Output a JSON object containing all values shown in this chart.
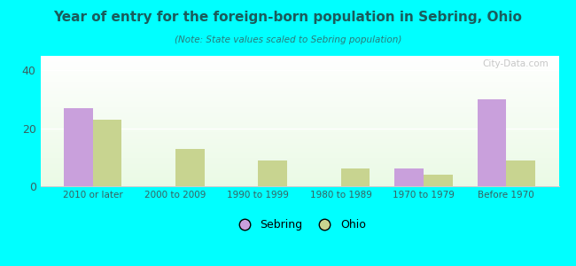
{
  "title": "Year of entry for the foreign-born population in Sebring, Ohio",
  "subtitle": "(Note: State values scaled to Sebring population)",
  "categories": [
    "2010 or later",
    "2000 to 2009",
    "1990 to 1999",
    "1980 to 1989",
    "1970 to 1979",
    "Before 1970"
  ],
  "sebring_values": [
    27,
    0,
    0,
    0,
    6,
    30
  ],
  "ohio_values": [
    23,
    13,
    9,
    6,
    4,
    9
  ],
  "sebring_color": "#c9a0dc",
  "ohio_color": "#c8d490",
  "background_color": "#00ffff",
  "ylim": [
    0,
    45
  ],
  "yticks": [
    0,
    20,
    40
  ],
  "bar_width": 0.35,
  "legend_sebring": "Sebring",
  "legend_ohio": "Ohio",
  "watermark": "City-Data.com",
  "title_color": "#1a5c5c",
  "subtitle_color": "#2a7a7a",
  "tick_color": "#3a6060",
  "grid_color": "#ffffff",
  "spine_color": "#cccccc"
}
